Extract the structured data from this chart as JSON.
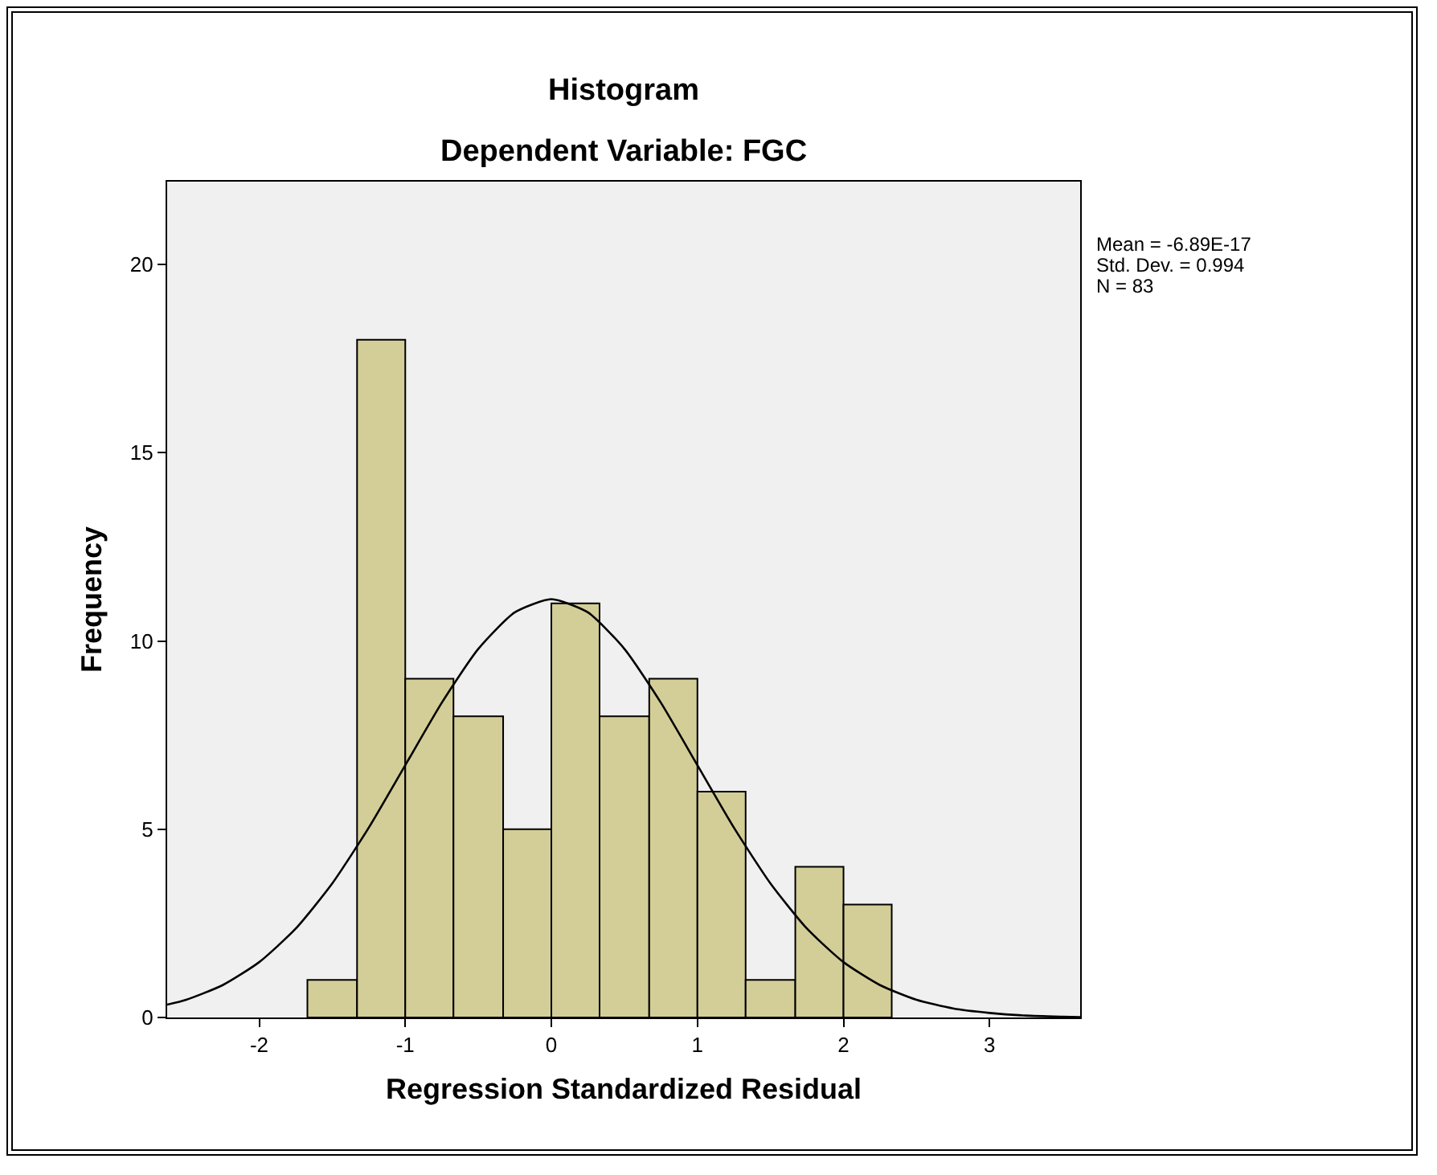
{
  "chart_data": {
    "type": "histogram",
    "title": "Histogram",
    "subtitle": "Dependent Variable: FGC",
    "xlabel": "Regression Standardized Residual",
    "ylabel": "Frequency",
    "bins": [
      -1.67,
      -1.33,
      -1,
      -0.67,
      -0.33,
      0,
      0.33,
      0.67,
      1,
      1.33,
      1.67,
      2,
      2.33
    ],
    "values": [
      1,
      18,
      9,
      8,
      5,
      11,
      8,
      9,
      6,
      1,
      4,
      3
    ],
    "color": "#d3ce97",
    "series": [
      {
        "type": "line",
        "color": "#000000",
        "x": [
          -2.63,
          -2.5,
          -2.25,
          -2,
          -1.75,
          -1.5,
          -1.25,
          -1,
          -0.75,
          -0.5,
          -0.25,
          0,
          0.25,
          0.5,
          0.75,
          1,
          1.25,
          1.5,
          1.75,
          2,
          2.25,
          2.5,
          2.75,
          3,
          3.25,
          3.5,
          3.62
        ],
        "values": [
          0.34,
          0.47,
          0.86,
          1.47,
          2.36,
          3.56,
          5.04,
          6.7,
          8.36,
          9.79,
          10.76,
          11.11,
          10.76,
          9.79,
          8.36,
          6.7,
          5.04,
          3.56,
          2.36,
          1.47,
          0.86,
          0.47,
          0.24,
          0.12,
          0.05,
          0.02,
          0.01
        ]
      }
    ],
    "annotations": [
      "Mean = -6.89E-17",
      "Std. Dev. = 0.994",
      "N = 83"
    ],
    "xlim": [
      -2.63,
      3.62
    ],
    "xticks": [
      -2,
      -1,
      0,
      1,
      2,
      3
    ],
    "ylim": [
      0,
      22.2
    ],
    "yticks": [
      0,
      5,
      10,
      15,
      20
    ],
    "grid": false,
    "line_style": "solid",
    "marker": "none"
  }
}
